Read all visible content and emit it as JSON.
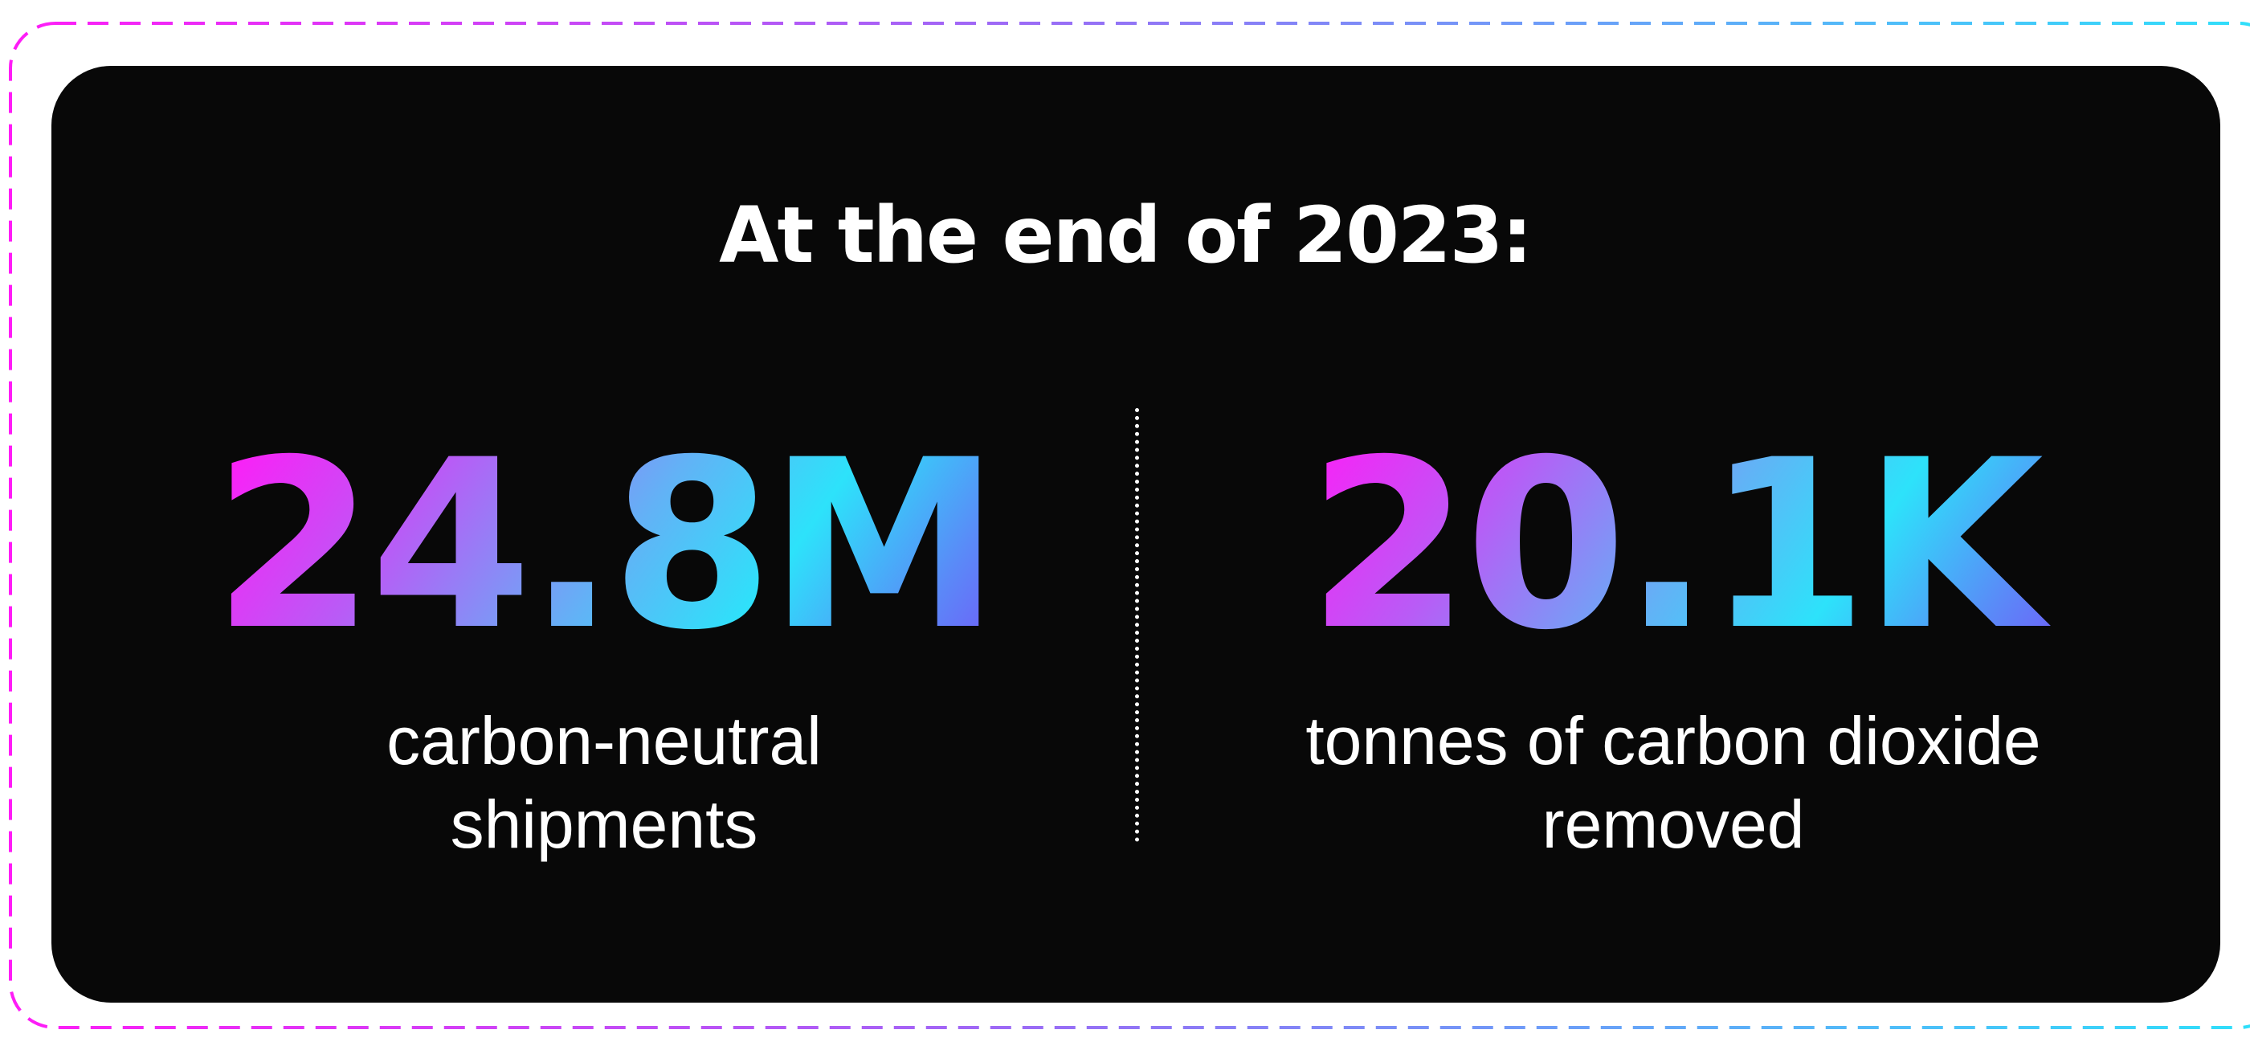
{
  "headline": "At the end of 2023:",
  "stats": [
    {
      "value": "24.8M",
      "label_line1": "carbon-neutral",
      "label_line2": "shipments"
    },
    {
      "value": "20.1K",
      "label_line1": "tonnes of carbon dioxide",
      "label_line2": "removed"
    }
  ],
  "colors": {
    "card_background": "#080808",
    "text": "#ffffff",
    "gradient_start": "#ff1cf7",
    "gradient_mid": "#2de2fa",
    "gradient_end": "#7b46f8",
    "frame_border_start": "#ff1cf7",
    "frame_border_end": "#2de2fa"
  }
}
